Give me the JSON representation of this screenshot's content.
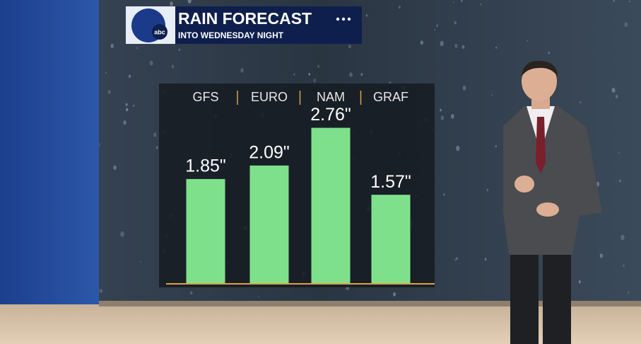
{
  "chart_data": {
    "type": "bar",
    "title": "RAIN FORECAST",
    "subtitle": "INTO WEDNESDAY NIGHT",
    "logo": "abc",
    "categories": [
      "GFS",
      "EURO",
      "NAM",
      "GRAF"
    ],
    "values": [
      1.85,
      2.09,
      2.76,
      1.57
    ],
    "value_labels": [
      "1.85\"",
      "2.09\"",
      "2.76\"",
      "1.57\""
    ],
    "color": "#7fe08c"
  }
}
